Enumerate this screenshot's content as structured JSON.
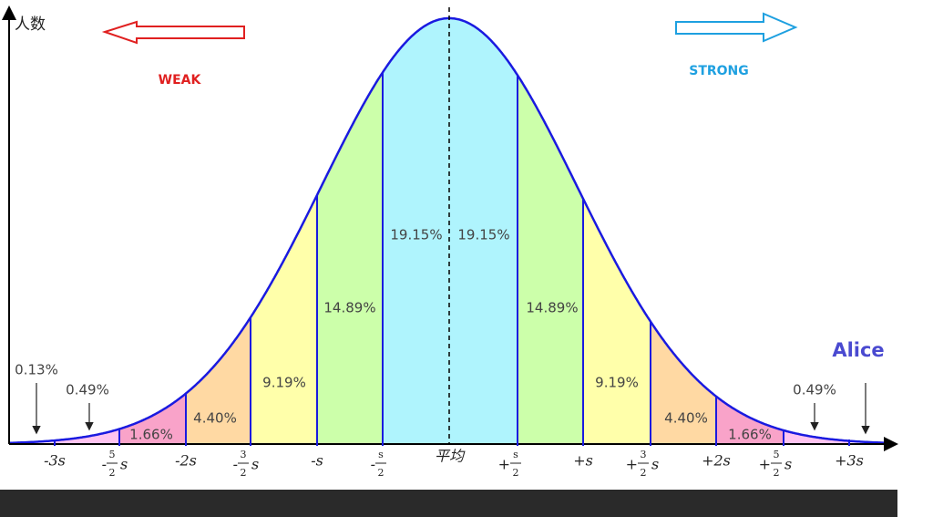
{
  "y_axis_label": "人数",
  "left_arrow_label": "WEAK",
  "right_arrow_label": "STRONG",
  "name_label": "Alice",
  "region_labels": {
    "center_left": "19.15%",
    "center_right": "19.15%",
    "first_left": "14.89%",
    "first_right": "14.89%",
    "second_left": "9.19%",
    "second_right": "9.19%",
    "third_left": "4.40%",
    "third_right": "4.40%",
    "fourth_left": "1.66%",
    "fourth_right": "1.66%",
    "fifth_left": "0.49%",
    "fifth_right": "0.49%",
    "tail_left": "0.13%"
  },
  "x_labels": [
    {
      "text": "-3s"
    },
    {
      "sign": "-",
      "numerator": "5",
      "denominator": "2",
      "symbol": "s"
    },
    {
      "text": "-2s"
    },
    {
      "sign": "-",
      "numerator": "3",
      "denominator": "2",
      "symbol": "s"
    },
    {
      "text": "-s"
    },
    {
      "sign": "-",
      "numerator": "s",
      "denominator": "2"
    },
    {
      "text": "平均"
    },
    {
      "sign": "+",
      "numerator": "s",
      "denominator": "2"
    },
    {
      "text": "+s"
    },
    {
      "sign": "+",
      "numerator": "3",
      "denominator": "2",
      "symbol": "s"
    },
    {
      "text": "+2s"
    },
    {
      "sign": "+",
      "numerator": "5",
      "denominator": "2",
      "symbol": "s"
    },
    {
      "text": "+3s"
    }
  ]
}
